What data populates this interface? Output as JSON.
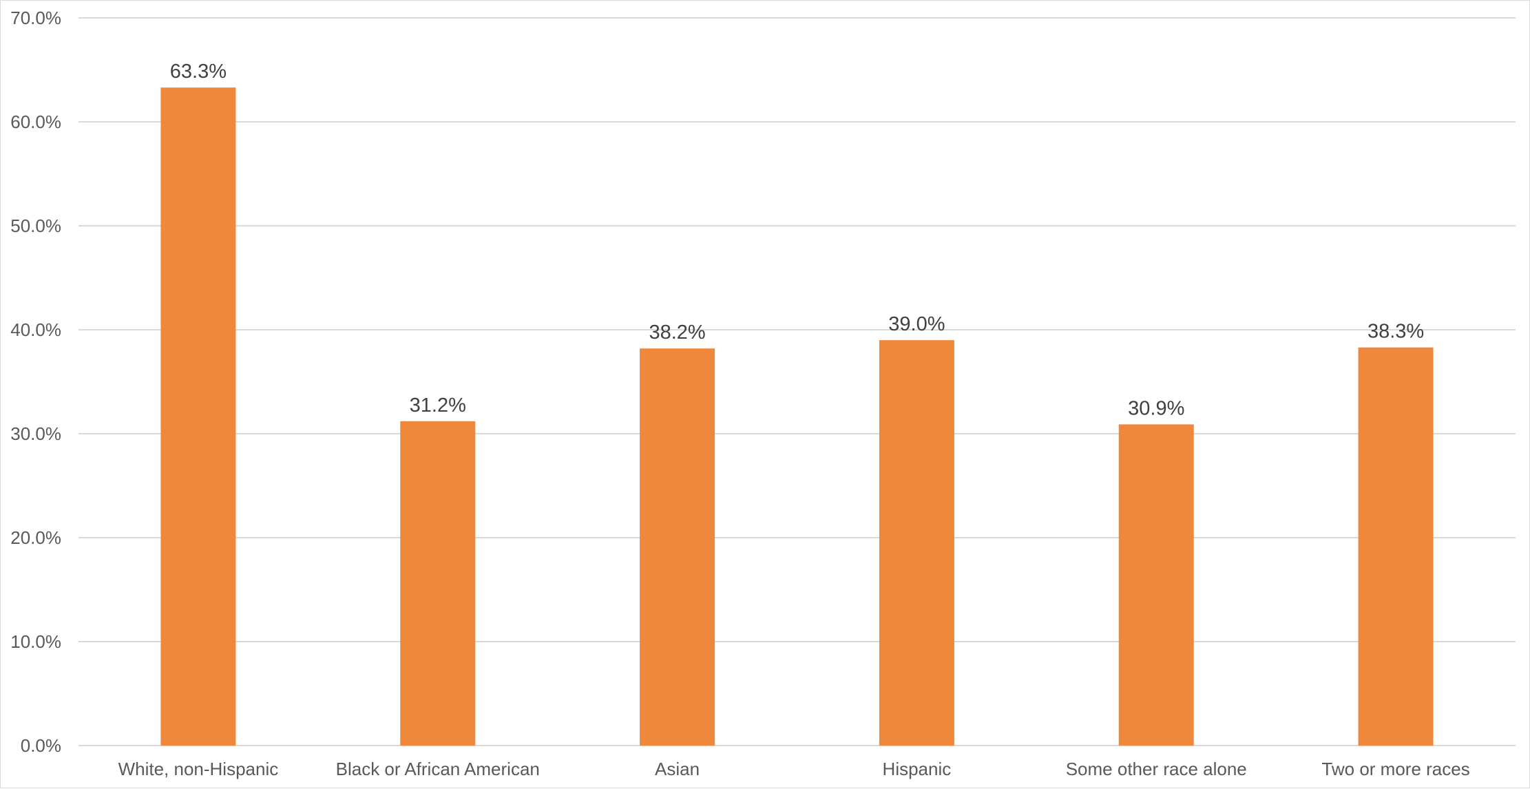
{
  "chart_data": {
    "type": "bar",
    "title": "",
    "xlabel": "",
    "ylabel": "",
    "categories": [
      "White, non-Hispanic",
      "Black or African American",
      "Asian",
      "Hispanic",
      "Some other race alone",
      "Two or more races"
    ],
    "values": [
      63.3,
      31.2,
      38.2,
      39.0,
      30.9,
      38.3
    ],
    "data_labels": [
      "63.3%",
      "31.2%",
      "38.2%",
      "39.0%",
      "30.9%",
      "38.3%"
    ],
    "ylim": [
      0,
      70
    ],
    "yticks": [
      0,
      10,
      20,
      30,
      40,
      50,
      60,
      70
    ],
    "ytick_labels": [
      "0.0%",
      "10.0%",
      "20.0%",
      "30.0%",
      "40.0%",
      "50.0%",
      "60.0%",
      "70.0%"
    ],
    "grid": true,
    "legend": "none",
    "bar_color": "#F0883C"
  }
}
